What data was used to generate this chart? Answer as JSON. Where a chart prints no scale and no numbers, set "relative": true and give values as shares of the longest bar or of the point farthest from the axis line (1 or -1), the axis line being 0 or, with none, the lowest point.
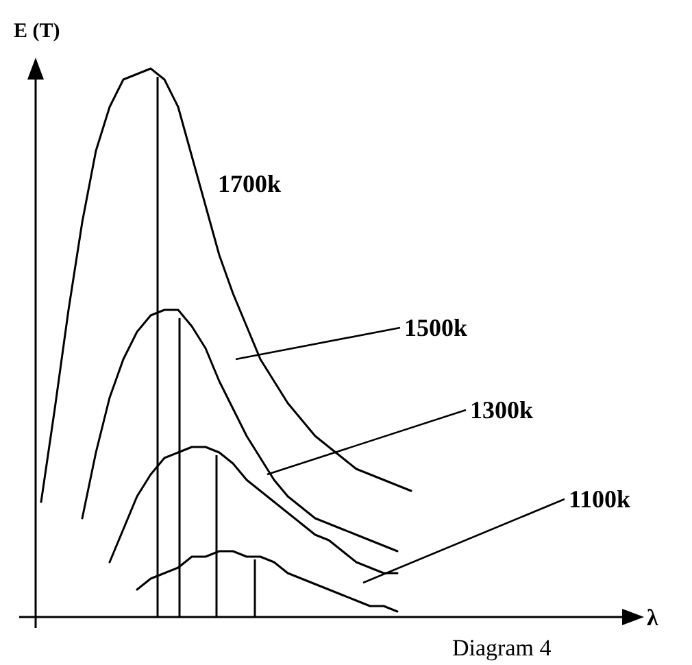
{
  "chart_data": {
    "type": "line",
    "relative": true,
    "ylabel": "E (T)",
    "annotations": [
      "λ",
      "Diagram 4"
    ],
    "legend": false,
    "marker": "none",
    "line_style": "solid",
    "grid": false,
    "categories": [
      null,
      null,
      null,
      null,
      null,
      null,
      null,
      null,
      null,
      null,
      null,
      null,
      null,
      null,
      null,
      null,
      null,
      null,
      null,
      null,
      null,
      null,
      null,
      null,
      null,
      null,
      null,
      null,
      null,
      null,
      null
    ],
    "series": [
      {
        "name": "1700k",
        "color": "#000000",
        "values": [
          0.21,
          0.38,
          0.56,
          0.72,
          0.85,
          0.93,
          0.98,
          0.99,
          1.0,
          0.98,
          0.93,
          0.84,
          0.75,
          0.66,
          0.59,
          0.53,
          0.47,
          0.43,
          0.39,
          0.36,
          0.33,
          0.31,
          0.29,
          0.27,
          0.26,
          0.25,
          0.24,
          0.23,
          null,
          null,
          null
        ]
      },
      {
        "name": "1500k",
        "color": "#000000",
        "values": [
          null,
          null,
          null,
          0.18,
          0.3,
          0.4,
          0.47,
          0.52,
          0.55,
          0.56,
          0.56,
          0.53,
          0.49,
          0.43,
          0.38,
          0.33,
          0.29,
          0.25,
          0.22,
          0.2,
          0.18,
          0.17,
          0.16,
          0.15,
          0.14,
          0.13,
          0.12,
          null,
          null,
          null,
          null
        ]
      },
      {
        "name": "1300k",
        "color": "#000000",
        "values": [
          null,
          null,
          null,
          null,
          null,
          0.1,
          0.16,
          0.22,
          0.26,
          0.29,
          0.3,
          0.31,
          0.31,
          0.3,
          0.28,
          0.25,
          0.23,
          0.21,
          0.19,
          0.17,
          0.15,
          0.14,
          0.12,
          0.1,
          0.09,
          0.08,
          0.08,
          null,
          null,
          null,
          null
        ]
      },
      {
        "name": "1100k",
        "color": "#000000",
        "values": [
          null,
          null,
          null,
          null,
          null,
          null,
          null,
          0.05,
          0.07,
          0.08,
          0.09,
          0.11,
          0.11,
          0.12,
          0.12,
          0.11,
          0.11,
          0.1,
          0.08,
          0.07,
          0.06,
          0.05,
          0.04,
          0.03,
          0.02,
          0.02,
          0.01,
          null,
          null,
          null,
          null
        ]
      }
    ]
  }
}
